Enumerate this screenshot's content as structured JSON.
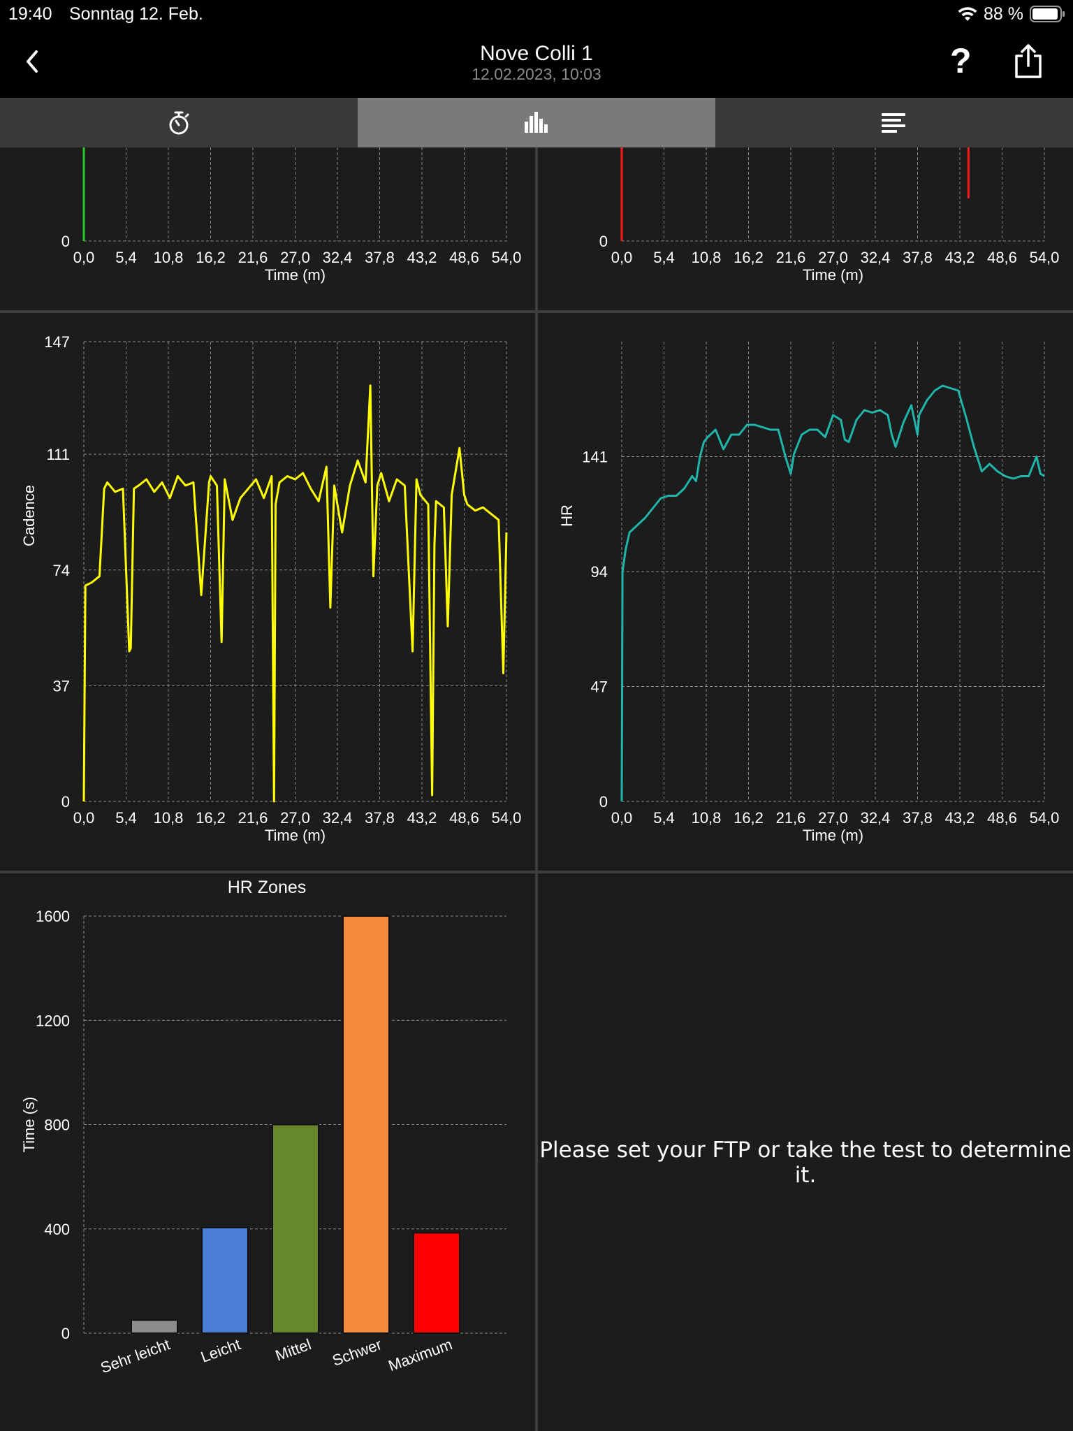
{
  "status_bar": {
    "time": "19:40",
    "date": "Sonntag 12. Feb.",
    "battery_percent": "88 %",
    "icons": [
      "wifi-icon",
      "battery-icon"
    ]
  },
  "nav": {
    "title": "Nove Colli 1",
    "subtitle": "12.02.2023, 10:03",
    "back_icon": "chevron-left-icon",
    "help_label": "?",
    "share_icon": "share-icon"
  },
  "tabs": [
    {
      "icon": "stopwatch-icon",
      "active": false
    },
    {
      "icon": "bar-chart-icon",
      "active": true
    },
    {
      "icon": "list-icon",
      "active": false
    }
  ],
  "x_ticks": [
    "0,0",
    "5,4",
    "10,8",
    "16,2",
    "21,6",
    "27,0",
    "32,4",
    "37,8",
    "43,2",
    "48,6",
    "54,0"
  ],
  "x_label": "Time (m)",
  "chart_data": [
    {
      "id": "top-left",
      "type": "line",
      "color": "#22cc22",
      "xlabel": "Time (m)",
      "xlim": [
        0,
        54
      ],
      "visible_y_ticks": [
        "0"
      ],
      "note_partial": true,
      "series": [
        {
          "values": [
            [
              0,
              0
            ],
            [
              0,
              1
            ]
          ]
        }
      ]
    },
    {
      "id": "top-right",
      "type": "line",
      "color": "#ff1a1a",
      "xlabel": "Time (m)",
      "xlim": [
        0,
        54
      ],
      "visible_y_ticks": [
        "0"
      ],
      "series": [
        {
          "values": [
            [
              0,
              0
            ],
            [
              0,
              1
            ],
            [
              44.3,
              0.3
            ],
            [
              44.3,
              1
            ],
            [
              44.8,
              0.85
            ],
            [
              44.8,
              1
            ]
          ]
        }
      ]
    },
    {
      "id": "cadence",
      "type": "line",
      "color": "#ffff00",
      "ylabel": "Cadence",
      "xlabel": "Time (m)",
      "xlim": [
        0,
        54
      ],
      "ylim": [
        0,
        147
      ],
      "y_ticks": [
        "0",
        "37",
        "74",
        "111",
        "147"
      ],
      "series": [
        {
          "name": "Cadence",
          "x": [
            0,
            0.2,
            1,
            2,
            2.6,
            3,
            4,
            5,
            5.8,
            6,
            6.4,
            7,
            8,
            9,
            10,
            11,
            12,
            13,
            14,
            15,
            16,
            16.2,
            17,
            17.6,
            18,
            19,
            20,
            21,
            22,
            23,
            24,
            24.3,
            24.5,
            25,
            26,
            27,
            28,
            29,
            30,
            31,
            31.5,
            32,
            33,
            34,
            35,
            36,
            36.6,
            37,
            37.5,
            38,
            39,
            40,
            41,
            42,
            42.5,
            43,
            44,
            44.5,
            44.8,
            45,
            46,
            46.5,
            47,
            48,
            48.6,
            49,
            50,
            51,
            52,
            53,
            53.6,
            54
          ],
          "y": [
            0,
            69,
            70,
            72,
            100,
            102,
            99,
            100,
            48,
            49,
            100,
            101,
            103,
            99,
            102,
            97,
            104,
            101,
            102,
            66,
            102,
            104,
            101,
            51,
            103,
            90,
            97,
            100,
            103,
            97,
            104,
            0,
            95,
            102,
            104,
            103,
            105,
            100,
            96,
            107,
            62,
            101,
            86,
            101,
            109,
            102,
            133,
            72,
            101,
            105,
            96,
            103,
            101,
            48,
            103,
            98,
            95,
            2,
            82,
            96,
            94,
            56,
            98,
            113,
            98,
            95,
            93,
            94,
            92,
            90,
            41,
            86
          ]
        }
      ]
    },
    {
      "id": "hr",
      "type": "line",
      "color": "#1fb5aa",
      "ylabel": "HR",
      "xlabel": "Time (m)",
      "xlim": [
        0,
        54
      ],
      "ylim": [
        0,
        188
      ],
      "y_ticks": [
        "0",
        "47",
        "94",
        "141"
      ],
      "series": [
        {
          "name": "HR",
          "x": [
            0,
            0.1,
            0.5,
            1,
            2,
            3,
            4,
            5,
            6,
            7,
            8,
            9,
            9.5,
            10,
            10.5,
            11,
            12,
            13,
            14,
            15,
            16,
            17,
            18,
            19,
            20,
            21,
            21.6,
            22,
            23,
            24,
            25,
            26,
            27,
            28,
            28.5,
            29,
            30,
            31,
            32,
            33,
            34,
            34.5,
            35,
            36,
            37,
            37.8,
            38,
            39,
            40,
            41,
            42,
            43,
            44,
            45,
            46,
            47,
            48,
            49,
            50,
            51,
            52,
            53,
            53.5,
            54
          ],
          "y": [
            0,
            94,
            103,
            110,
            113,
            116,
            120,
            124,
            125,
            125,
            128,
            133,
            131,
            141,
            147,
            149,
            152,
            144,
            150,
            150,
            154,
            154,
            153,
            152,
            152,
            140,
            134,
            142,
            150,
            152,
            152,
            149,
            158,
            156,
            148,
            147,
            156,
            160,
            159,
            160,
            158,
            150,
            145,
            155,
            162,
            150,
            158,
            164,
            168,
            170,
            169,
            168,
            157,
            145,
            135,
            138,
            135,
            133,
            132,
            133,
            133,
            141,
            134,
            133
          ]
        }
      ]
    },
    {
      "id": "hr-zones",
      "type": "bar",
      "title": "HR Zones",
      "ylabel": "Time (s)",
      "ylim": [
        0,
        1600
      ],
      "y_ticks": [
        "0",
        "400",
        "800",
        "1200",
        "1600"
      ],
      "categories": [
        "Sehr leicht",
        "Leicht",
        "Mittel",
        "Schwer",
        "Maximum"
      ],
      "values": [
        50,
        405,
        800,
        1600,
        385
      ],
      "colors": [
        "#8d8d8d",
        "#4a7ed6",
        "#67872e",
        "#f48a3c",
        "#ff0000"
      ]
    }
  ],
  "ftp_message": "Please set your FTP or take the test to determine it."
}
